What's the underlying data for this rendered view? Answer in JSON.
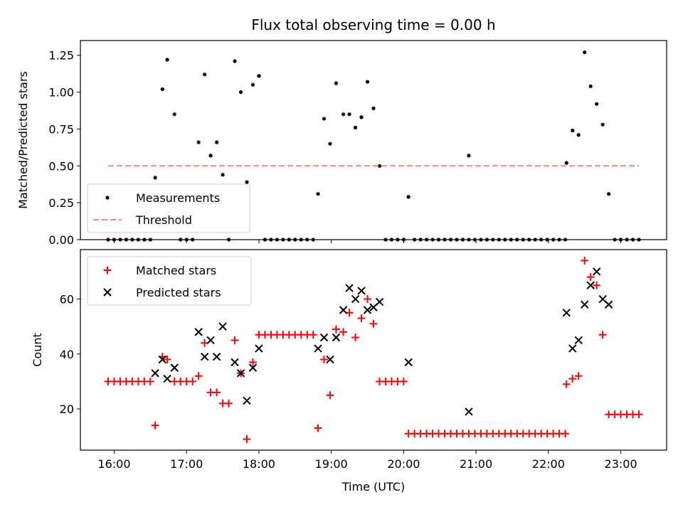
{
  "chart_data": [
    {
      "type": "scatter",
      "title": "Flux total observing time = 0.00 h",
      "xlabel": "",
      "ylabel": "Matched/Predicted stars",
      "xlim": [
        "15:32",
        "23:38"
      ],
      "ylim": [
        0,
        1.35
      ],
      "xticks": [
        "16:00",
        "17:00",
        "18:00",
        "19:00",
        "20:00",
        "21:00",
        "22:00",
        "23:00"
      ],
      "yticks": [
        0,
        0.25,
        0.5,
        0.75,
        1.0,
        1.25
      ],
      "ytick_labels": [
        "0.00",
        "0.25",
        "0.50",
        "0.75",
        "1.00",
        "1.25"
      ],
      "legend": {
        "placement": "lower-left",
        "entries": [
          "Measurements",
          "Threshold"
        ]
      },
      "series": [
        {
          "name": "Measurements",
          "marker": "dot",
          "color": "#000000",
          "points": [
            [
              "15:55",
              0
            ],
            [
              "16:00",
              0
            ],
            [
              "16:05",
              0
            ],
            [
              "16:10",
              0
            ],
            [
              "16:15",
              0
            ],
            [
              "16:20",
              0
            ],
            [
              "16:25",
              0
            ],
            [
              "16:30",
              0
            ],
            [
              "16:34",
              0.42
            ],
            [
              "16:40",
              1.02
            ],
            [
              "16:44",
              1.22
            ],
            [
              "16:50",
              0.85
            ],
            [
              "16:55",
              0
            ],
            [
              "17:00",
              0
            ],
            [
              "17:05",
              0
            ],
            [
              "17:10",
              0.66
            ],
            [
              "17:15",
              1.12
            ],
            [
              "17:20",
              0.57
            ],
            [
              "17:25",
              0.66
            ],
            [
              "17:30",
              0.44
            ],
            [
              "17:35",
              0
            ],
            [
              "17:40",
              1.21
            ],
            [
              "17:45",
              1.0
            ],
            [
              "17:50",
              0.39
            ],
            [
              "17:55",
              1.05
            ],
            [
              "18:00",
              1.11
            ],
            [
              "18:05",
              0
            ],
            [
              "18:10",
              0
            ],
            [
              "18:15",
              0
            ],
            [
              "18:20",
              0
            ],
            [
              "18:25",
              0
            ],
            [
              "18:30",
              0
            ],
            [
              "18:35",
              0
            ],
            [
              "18:40",
              0
            ],
            [
              "18:45",
              0
            ],
            [
              "18:49",
              0.31
            ],
            [
              "18:54",
              0.82
            ],
            [
              "18:59",
              0.65
            ],
            [
              "19:04",
              1.06
            ],
            [
              "19:10",
              0.85
            ],
            [
              "19:15",
              0.85
            ],
            [
              "19:20",
              0.76
            ],
            [
              "19:25",
              0.83
            ],
            [
              "19:30",
              1.07
            ],
            [
              "19:35",
              0.89
            ],
            [
              "19:40",
              0.5
            ],
            [
              "19:45",
              0
            ],
            [
              "19:50",
              0
            ],
            [
              "19:55",
              0
            ],
            [
              "20:00",
              0
            ],
            [
              "20:04",
              0.29
            ],
            [
              "20:09",
              0
            ],
            [
              "20:14",
              0
            ],
            [
              "20:19",
              0
            ],
            [
              "20:24",
              0
            ],
            [
              "20:29",
              0
            ],
            [
              "20:34",
              0
            ],
            [
              "20:39",
              0
            ],
            [
              "20:44",
              0
            ],
            [
              "20:49",
              0
            ],
            [
              "20:54",
              0
            ],
            [
              "20:54",
              0.57
            ],
            [
              "20:59",
              0
            ],
            [
              "21:04",
              0
            ],
            [
              "21:09",
              0
            ],
            [
              "21:14",
              0
            ],
            [
              "21:19",
              0
            ],
            [
              "21:24",
              0
            ],
            [
              "21:29",
              0
            ],
            [
              "21:34",
              0
            ],
            [
              "21:39",
              0
            ],
            [
              "21:44",
              0
            ],
            [
              "21:49",
              0
            ],
            [
              "21:54",
              0
            ],
            [
              "21:59",
              0
            ],
            [
              "22:04",
              0
            ],
            [
              "22:09",
              0
            ],
            [
              "22:14",
              0
            ],
            [
              "22:15",
              0.52
            ],
            [
              "22:20",
              0.74
            ],
            [
              "22:25",
              0.71
            ],
            [
              "22:30",
              1.27
            ],
            [
              "22:35",
              1.04
            ],
            [
              "22:40",
              0.92
            ],
            [
              "22:45",
              0.78
            ],
            [
              "22:50",
              0.31
            ],
            [
              "22:55",
              0
            ],
            [
              "23:00",
              0
            ],
            [
              "23:05",
              0
            ],
            [
              "23:10",
              0
            ],
            [
              "23:15",
              0
            ]
          ]
        },
        {
          "name": "Threshold",
          "marker": "dashed-line",
          "color": "#ff8080",
          "points": [
            [
              "15:55",
              0.5
            ],
            [
              "23:15",
              0.5
            ]
          ]
        }
      ]
    },
    {
      "type": "scatter",
      "title": "",
      "xlabel": "Time (UTC)",
      "ylabel": "Count",
      "xlim": [
        "15:32",
        "23:38"
      ],
      "ylim": [
        5,
        78
      ],
      "xticks": [
        "16:00",
        "17:00",
        "18:00",
        "19:00",
        "20:00",
        "21:00",
        "22:00",
        "23:00"
      ],
      "yticks": [
        20,
        40,
        60
      ],
      "ytick_labels": [
        "20",
        "40",
        "60"
      ],
      "legend": {
        "placement": "upper-left",
        "entries": [
          "Matched stars",
          "Predicted stars"
        ]
      },
      "series": [
        {
          "name": "Matched stars",
          "marker": "plus",
          "color": "#ff0000",
          "points": [
            [
              "15:55",
              30
            ],
            [
              "16:00",
              30
            ],
            [
              "16:05",
              30
            ],
            [
              "16:10",
              30
            ],
            [
              "16:15",
              30
            ],
            [
              "16:20",
              30
            ],
            [
              "16:25",
              30
            ],
            [
              "16:30",
              30
            ],
            [
              "16:34",
              14
            ],
            [
              "16:40",
              39
            ],
            [
              "16:44",
              38
            ],
            [
              "16:50",
              30
            ],
            [
              "16:55",
              30
            ],
            [
              "17:00",
              30
            ],
            [
              "17:05",
              30
            ],
            [
              "17:10",
              32
            ],
            [
              "17:15",
              44
            ],
            [
              "17:20",
              26
            ],
            [
              "17:25",
              26
            ],
            [
              "17:30",
              22
            ],
            [
              "17:35",
              22
            ],
            [
              "17:40",
              45
            ],
            [
              "17:45",
              33
            ],
            [
              "17:50",
              9
            ],
            [
              "17:55",
              37
            ],
            [
              "18:00",
              47
            ],
            [
              "18:05",
              47
            ],
            [
              "18:10",
              47
            ],
            [
              "18:15",
              47
            ],
            [
              "18:20",
              47
            ],
            [
              "18:25",
              47
            ],
            [
              "18:30",
              47
            ],
            [
              "18:35",
              47
            ],
            [
              "18:40",
              47
            ],
            [
              "18:45",
              47
            ],
            [
              "18:49",
              13
            ],
            [
              "18:54",
              38
            ],
            [
              "18:59",
              25
            ],
            [
              "19:04",
              49
            ],
            [
              "19:10",
              48
            ],
            [
              "19:15",
              55
            ],
            [
              "19:20",
              46
            ],
            [
              "19:25",
              53
            ],
            [
              "19:30",
              60
            ],
            [
              "19:35",
              51
            ],
            [
              "19:40",
              30
            ],
            [
              "19:45",
              30
            ],
            [
              "19:50",
              30
            ],
            [
              "19:55",
              30
            ],
            [
              "20:00",
              30
            ],
            [
              "20:04",
              11
            ],
            [
              "20:09",
              11
            ],
            [
              "20:14",
              11
            ],
            [
              "20:19",
              11
            ],
            [
              "20:24",
              11
            ],
            [
              "20:29",
              11
            ],
            [
              "20:34",
              11
            ],
            [
              "20:39",
              11
            ],
            [
              "20:44",
              11
            ],
            [
              "20:49",
              11
            ],
            [
              "20:54",
              11
            ],
            [
              "20:59",
              11
            ],
            [
              "21:04",
              11
            ],
            [
              "21:09",
              11
            ],
            [
              "21:14",
              11
            ],
            [
              "21:19",
              11
            ],
            [
              "21:24",
              11
            ],
            [
              "21:29",
              11
            ],
            [
              "21:34",
              11
            ],
            [
              "21:39",
              11
            ],
            [
              "21:44",
              11
            ],
            [
              "21:49",
              11
            ],
            [
              "21:54",
              11
            ],
            [
              "21:59",
              11
            ],
            [
              "22:04",
              11
            ],
            [
              "22:09",
              11
            ],
            [
              "22:14",
              11
            ],
            [
              "22:15",
              29
            ],
            [
              "22:20",
              31
            ],
            [
              "22:25",
              32
            ],
            [
              "22:30",
              74
            ],
            [
              "22:35",
              68
            ],
            [
              "22:40",
              65
            ],
            [
              "22:45",
              47
            ],
            [
              "22:50",
              18
            ],
            [
              "22:55",
              18
            ],
            [
              "23:00",
              18
            ],
            [
              "23:05",
              18
            ],
            [
              "23:10",
              18
            ],
            [
              "23:15",
              18
            ]
          ]
        },
        {
          "name": "Predicted stars",
          "marker": "x",
          "color": "#000000",
          "points": [
            [
              "16:34",
              33
            ],
            [
              "16:40",
              38
            ],
            [
              "16:44",
              31
            ],
            [
              "16:50",
              35
            ],
            [
              "17:10",
              48
            ],
            [
              "17:15",
              39
            ],
            [
              "17:20",
              45
            ],
            [
              "17:25",
              39
            ],
            [
              "17:30",
              50
            ],
            [
              "17:40",
              37
            ],
            [
              "17:45",
              33
            ],
            [
              "17:50",
              23
            ],
            [
              "17:55",
              35
            ],
            [
              "18:00",
              42
            ],
            [
              "18:49",
              42
            ],
            [
              "18:54",
              46
            ],
            [
              "18:59",
              38
            ],
            [
              "19:04",
              46
            ],
            [
              "19:10",
              56
            ],
            [
              "19:15",
              64
            ],
            [
              "19:20",
              60
            ],
            [
              "19:25",
              63
            ],
            [
              "19:30",
              56
            ],
            [
              "19:35",
              57
            ],
            [
              "19:40",
              59
            ],
            [
              "20:04",
              37
            ],
            [
              "20:54",
              19
            ],
            [
              "22:15",
              55
            ],
            [
              "22:20",
              42
            ],
            [
              "22:25",
              45
            ],
            [
              "22:30",
              58
            ],
            [
              "22:35",
              65
            ],
            [
              "22:40",
              70
            ],
            [
              "22:45",
              60
            ],
            [
              "22:50",
              58
            ]
          ]
        }
      ]
    }
  ]
}
